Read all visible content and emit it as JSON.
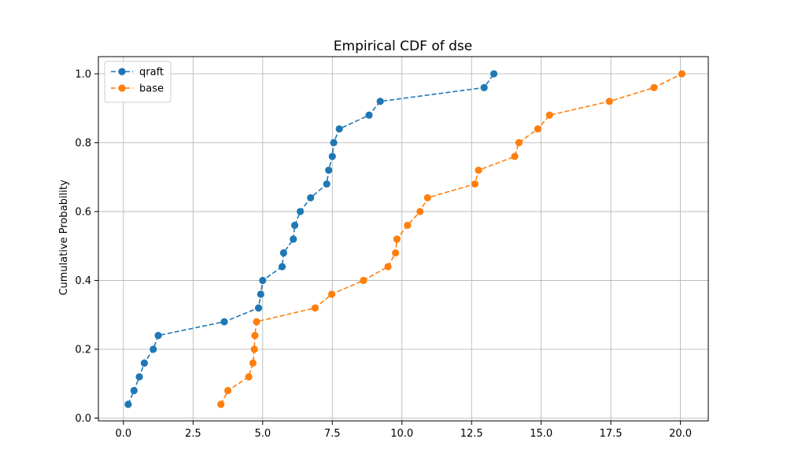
{
  "chart_data": {
    "type": "line",
    "title": "Empirical CDF of dse",
    "xlabel": "",
    "ylabel": "Cumulative Probability",
    "xlim": [
      -0.9,
      21.0
    ],
    "ylim": [
      -0.008,
      1.05
    ],
    "xticks": [
      0.0,
      2.5,
      5.0,
      7.5,
      10.0,
      12.5,
      15.0,
      17.5,
      20.0
    ],
    "xtick_labels": [
      "0.0",
      "2.5",
      "5.0",
      "7.5",
      "10.0",
      "12.5",
      "15.0",
      "17.5",
      "20.0"
    ],
    "yticks": [
      0.0,
      0.2,
      0.4,
      0.6,
      0.8,
      1.0
    ],
    "ytick_labels": [
      "0.0",
      "0.2",
      "0.4",
      "0.6",
      "0.8",
      "1.0"
    ],
    "grid": true,
    "legend_position": "top-left",
    "series": [
      {
        "name": "qraft",
        "color": "#1f77b4",
        "linestyle": "dashed",
        "marker": "circle",
        "x": [
          0.17,
          0.38,
          0.57,
          0.75,
          1.07,
          1.25,
          3.62,
          4.85,
          4.93,
          5.0,
          5.7,
          5.75,
          6.1,
          6.15,
          6.35,
          6.72,
          7.3,
          7.37,
          7.5,
          7.55,
          7.75,
          8.82,
          9.22,
          12.95,
          13.3
        ],
        "y": [
          0.04,
          0.08,
          0.12,
          0.16,
          0.2,
          0.24,
          0.28,
          0.32,
          0.36,
          0.4,
          0.44,
          0.48,
          0.52,
          0.56,
          0.6,
          0.64,
          0.68,
          0.72,
          0.76,
          0.8,
          0.84,
          0.88,
          0.92,
          0.96,
          1.0
        ]
      },
      {
        "name": "base",
        "color": "#ff7f0e",
        "linestyle": "dashed",
        "marker": "circle",
        "x": [
          3.5,
          3.75,
          4.5,
          4.65,
          4.7,
          4.72,
          4.78,
          6.88,
          7.48,
          8.62,
          9.5,
          9.77,
          9.82,
          10.2,
          10.65,
          10.92,
          12.62,
          12.75,
          14.05,
          14.2,
          14.88,
          15.3,
          17.45,
          19.05,
          20.05
        ],
        "y": [
          0.04,
          0.08,
          0.12,
          0.16,
          0.2,
          0.24,
          0.28,
          0.32,
          0.36,
          0.4,
          0.44,
          0.48,
          0.52,
          0.56,
          0.6,
          0.64,
          0.68,
          0.72,
          0.76,
          0.8,
          0.84,
          0.88,
          0.92,
          0.96,
          1.0
        ]
      }
    ]
  }
}
